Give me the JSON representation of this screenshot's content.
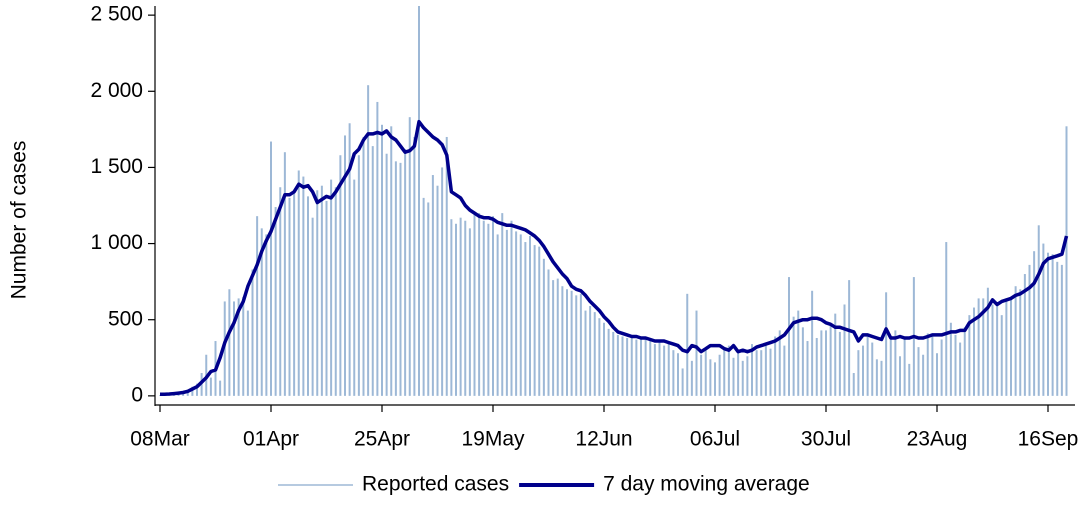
{
  "chart_data": {
    "type": "bar",
    "y_label": "Number of cases",
    "categories": [
      "08Mar",
      null,
      null,
      null,
      null,
      null,
      null,
      null,
      null,
      null,
      null,
      null,
      null,
      null,
      null,
      null,
      null,
      null,
      null,
      null,
      null,
      null,
      null,
      null,
      "01Apr",
      null,
      null,
      null,
      null,
      null,
      null,
      null,
      null,
      null,
      null,
      null,
      null,
      null,
      null,
      null,
      null,
      null,
      null,
      null,
      null,
      null,
      null,
      null,
      "25Apr",
      null,
      null,
      null,
      null,
      null,
      null,
      null,
      null,
      null,
      null,
      null,
      null,
      null,
      null,
      null,
      null,
      null,
      null,
      null,
      null,
      null,
      null,
      null,
      "19May",
      null,
      null,
      null,
      null,
      null,
      null,
      null,
      null,
      null,
      null,
      null,
      null,
      null,
      null,
      null,
      null,
      null,
      null,
      null,
      null,
      null,
      null,
      null,
      "12Jun",
      null,
      null,
      null,
      null,
      null,
      null,
      null,
      null,
      null,
      null,
      null,
      null,
      null,
      null,
      null,
      null,
      null,
      null,
      null,
      null,
      null,
      null,
      null,
      "06Jul",
      null,
      null,
      null,
      null,
      null,
      null,
      null,
      null,
      null,
      null,
      null,
      null,
      null,
      null,
      null,
      null,
      null,
      null,
      null,
      null,
      null,
      null,
      null,
      "30Jul",
      null,
      null,
      null,
      null,
      null,
      null,
      null,
      null,
      null,
      null,
      null,
      null,
      null,
      null,
      null,
      null,
      null,
      null,
      null,
      null,
      null,
      null,
      null,
      "23Aug",
      null,
      null,
      null,
      null,
      null,
      null,
      null,
      null,
      null,
      null,
      null,
      null,
      null,
      null,
      null,
      null,
      null,
      null,
      null,
      null,
      null,
      null,
      null,
      "16Sep",
      null,
      null,
      null,
      null
    ],
    "series": [
      {
        "name": "Reported cases",
        "type": "bar",
        "color": "#9db8d6",
        "values": [
          5,
          8,
          10,
          15,
          20,
          25,
          40,
          60,
          80,
          150,
          270,
          120,
          360,
          100,
          620,
          700,
          620,
          640,
          650,
          560,
          830,
          1180,
          1100,
          1060,
          1670,
          1240,
          1370,
          1600,
          1300,
          1340,
          1480,
          1440,
          1310,
          1170,
          1350,
          1380,
          1280,
          1420,
          1370,
          1580,
          1710,
          1790,
          1420,
          1580,
          1700,
          2040,
          1640,
          1930,
          1780,
          1590,
          1770,
          1540,
          1530,
          1620,
          1830,
          1700,
          2560,
          1300,
          1270,
          1450,
          1380,
          1500,
          1700,
          1160,
          1130,
          1170,
          1150,
          1100,
          1200,
          1200,
          1150,
          1130,
          1180,
          1060,
          1200,
          1090,
          1150,
          1080,
          1060,
          1010,
          1050,
          990,
          980,
          900,
          830,
          760,
          770,
          720,
          700,
          690,
          660,
          670,
          560,
          590,
          550,
          510,
          480,
          440,
          420,
          400,
          390,
          380,
          390,
          370,
          370,
          380,
          360,
          340,
          370,
          330,
          350,
          300,
          280,
          180,
          670,
          230,
          560,
          270,
          300,
          240,
          220,
          270,
          310,
          330,
          250,
          280,
          230,
          260,
          340,
          300,
          300,
          330,
          310,
          390,
          430,
          330,
          780,
          520,
          560,
          450,
          360,
          690,
          380,
          430,
          430,
          460,
          540,
          420,
          600,
          760,
          150,
          300,
          330,
          400,
          350,
          240,
          230,
          680,
          370,
          430,
          260,
          380,
          210,
          780,
          320,
          270,
          410,
          400,
          280,
          370,
          1010,
          480,
          400,
          350,
          450,
          530,
          580,
          640,
          640,
          710,
          600,
          610,
          530,
          640,
          650,
          720,
          700,
          800,
          860,
          950,
          1120,
          1000,
          940,
          930,
          880,
          860,
          1770
        ]
      },
      {
        "name": "7 day moving average",
        "type": "line",
        "color": "#00008b",
        "values": [
          10,
          10,
          12,
          15,
          18,
          22,
          30,
          45,
          60,
          90,
          120,
          160,
          170,
          250,
          350,
          420,
          480,
          560,
          620,
          720,
          790,
          860,
          950,
          1020,
          1080,
          1160,
          1240,
          1320,
          1320,
          1340,
          1390,
          1370,
          1380,
          1340,
          1270,
          1290,
          1310,
          1300,
          1340,
          1390,
          1440,
          1490,
          1590,
          1620,
          1680,
          1720,
          1720,
          1730,
          1720,
          1740,
          1700,
          1680,
          1640,
          1600,
          1610,
          1640,
          1800,
          1760,
          1730,
          1700,
          1680,
          1650,
          1580,
          1340,
          1320,
          1300,
          1250,
          1220,
          1200,
          1180,
          1170,
          1170,
          1160,
          1140,
          1130,
          1120,
          1120,
          1110,
          1100,
          1090,
          1070,
          1050,
          1020,
          980,
          930,
          880,
          840,
          800,
          770,
          720,
          700,
          690,
          660,
          620,
          590,
          560,
          520,
          490,
          450,
          420,
          410,
          400,
          390,
          390,
          380,
          380,
          370,
          360,
          360,
          360,
          350,
          340,
          330,
          300,
          290,
          330,
          320,
          290,
          310,
          330,
          330,
          330,
          310,
          300,
          330,
          290,
          300,
          290,
          300,
          320,
          330,
          340,
          350,
          360,
          380,
          400,
          440,
          480,
          490,
          500,
          500,
          510,
          510,
          500,
          480,
          470,
          450,
          450,
          440,
          430,
          420,
          360,
          400,
          400,
          390,
          380,
          370,
          440,
          380,
          380,
          390,
          380,
          380,
          390,
          380,
          380,
          390,
          400,
          400,
          400,
          410,
          420,
          420,
          430,
          430,
          480,
          500,
          520,
          550,
          580,
          630,
          600,
          620,
          630,
          640,
          660,
          670,
          690,
          710,
          740,
          800,
          870,
          900,
          910,
          920,
          930,
          1050
        ]
      }
    ],
    "ylim": [
      -60,
      2560
    ],
    "yticks": [
      0,
      500,
      {
        "value": 1000,
        "label": "1 000"
      },
      {
        "value": 1500,
        "label": "1 500"
      },
      {
        "value": 2000,
        "label": "2 000"
      },
      {
        "value": 2500,
        "label": "2 500"
      }
    ]
  }
}
